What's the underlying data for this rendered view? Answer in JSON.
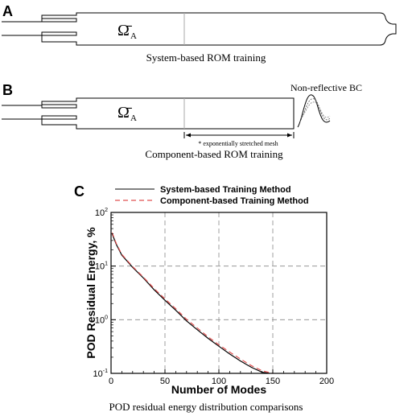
{
  "panel_a": {
    "letter": "A",
    "domain_symbol": "Ω̄",
    "domain_subscript": "A",
    "caption": "System-based ROM training"
  },
  "panel_b": {
    "letter": "B",
    "domain_symbol": "Ω̄",
    "domain_subscript": "A",
    "boundary_label": "Non-reflective BC",
    "mesh_note": "* exponentially stretched mesh",
    "caption": "Component-based ROM training"
  },
  "panel_c": {
    "letter": "C",
    "caption": "POD residual energy distribution comparisons"
  },
  "chart_data": {
    "type": "line",
    "xlabel": "Number of Modes",
    "ylabel": "POD Residual Energy, %",
    "xlim": [
      0,
      200
    ],
    "ylim": [
      0.1,
      100
    ],
    "yscale": "log",
    "grid": true,
    "legend_position": "top",
    "x_ticks": [
      "0",
      "50",
      "100",
      "150",
      "200"
    ],
    "y_ticks": [
      {
        "base": "10",
        "exp": "-1",
        "value": 0.1
      },
      {
        "base": "10",
        "exp": "0",
        "value": 1
      },
      {
        "base": "10",
        "exp": "1",
        "value": 10
      },
      {
        "base": "10",
        "exp": "2",
        "value": 100
      }
    ],
    "series": [
      {
        "name": "System-based Training Method",
        "color": "#000000",
        "dash": "solid",
        "x": [
          1,
          5,
          10,
          20,
          30,
          40,
          50,
          60,
          70,
          80,
          90,
          100,
          110,
          120,
          130,
          140,
          147
        ],
        "y": [
          40,
          25,
          16,
          9.5,
          6.0,
          3.6,
          2.3,
          1.5,
          0.95,
          0.65,
          0.45,
          0.32,
          0.23,
          0.17,
          0.13,
          0.105,
          0.1
        ]
      },
      {
        "name": "Component-based Training Method",
        "color": "#e05050",
        "dash": "dashed",
        "x": [
          1,
          5,
          10,
          20,
          30,
          40,
          50,
          60,
          70,
          80,
          90,
          100,
          110,
          120,
          130,
          140,
          150
        ],
        "y": [
          42,
          26,
          16.5,
          9.8,
          6.2,
          3.8,
          2.45,
          1.6,
          1.02,
          0.7,
          0.48,
          0.34,
          0.25,
          0.185,
          0.14,
          0.112,
          0.1
        ]
      }
    ]
  }
}
